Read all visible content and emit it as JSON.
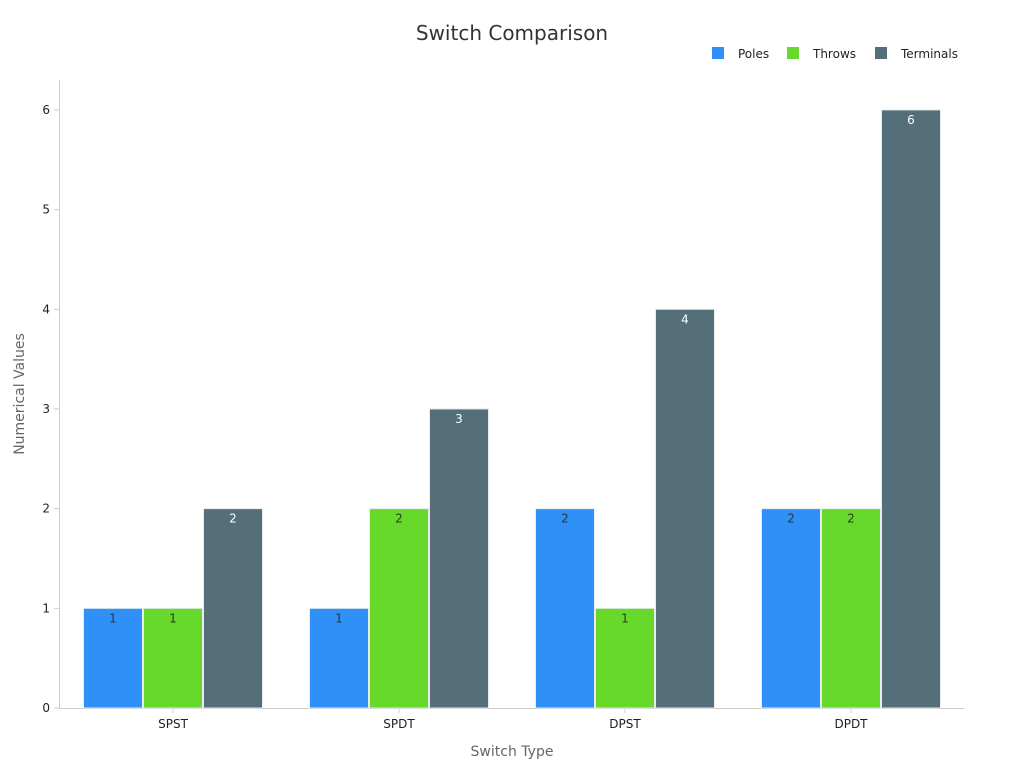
{
  "chart_data": {
    "type": "bar",
    "title": "Switch Comparison",
    "xlabel": "Switch Type",
    "ylabel": "Numerical Values",
    "categories": [
      "SPST",
      "SPDT",
      "DPST",
      "DPDT"
    ],
    "series": [
      {
        "name": "Poles",
        "values": [
          1,
          1,
          2,
          2
        ],
        "color": "#2f91f7",
        "label_color": "#333333"
      },
      {
        "name": "Throws",
        "values": [
          1,
          2,
          1,
          2
        ],
        "color": "#66d92a",
        "label_color": "#333333"
      },
      {
        "name": "Terminals",
        "values": [
          2,
          3,
          4,
          6
        ],
        "color": "#546e7a",
        "label_color": "#ffffff"
      }
    ],
    "ylim": [
      0,
      6.3
    ],
    "yticks": [
      0,
      1,
      2,
      3,
      4,
      5,
      6
    ],
    "grid": false,
    "legend_position": "top-right"
  }
}
